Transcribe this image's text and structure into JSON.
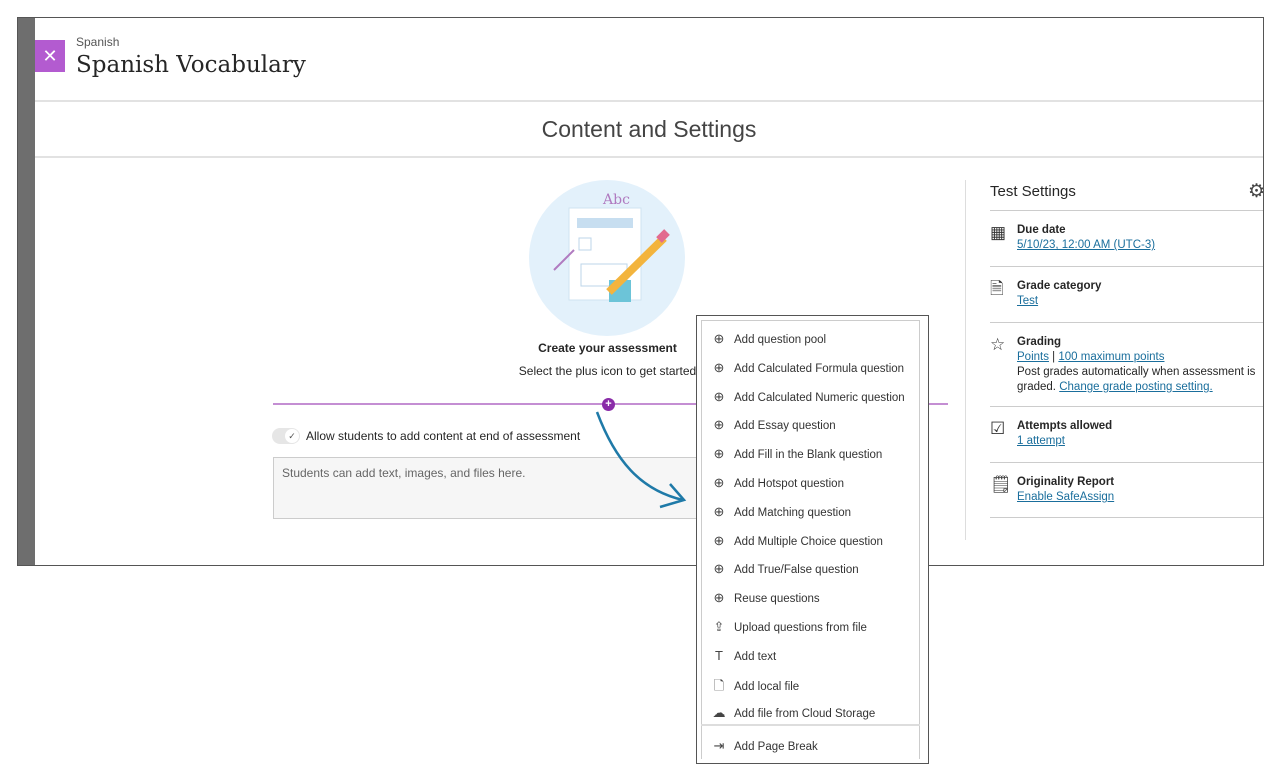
{
  "header": {
    "breadcrumb": "Spanish",
    "title": "Spanish Vocabulary",
    "close_icon": "close-icon"
  },
  "section_title": "Content and Settings",
  "empty_state": {
    "title": "Create your assessment",
    "subtitle": "Select the plus icon to get started"
  },
  "toggle": {
    "label": "Allow students to add content at end of assessment",
    "checked": true
  },
  "textarea": {
    "placeholder": "Students can add text, images, and files here."
  },
  "settings": {
    "title": "Test Settings",
    "due_date": {
      "label": "Due date",
      "value": "5/10/23, 12:00 AM (UTC-3)"
    },
    "grade_category": {
      "label": "Grade category",
      "value": "Test"
    },
    "grading": {
      "label": "Grading",
      "type": "Points",
      "sep": "|",
      "max": "100 maximum points",
      "note": "Post grades automatically when assessment is graded.",
      "change": "Change grade posting setting."
    },
    "attempts": {
      "label": "Attempts allowed",
      "value": "1 attempt"
    },
    "originality": {
      "label": "Originality Report",
      "value": "Enable SafeAssign"
    }
  },
  "menu": {
    "items": [
      {
        "label": "Add question pool",
        "icon": "plus-circle"
      },
      {
        "label": "Add Calculated Formula question",
        "icon": "plus-circle"
      },
      {
        "label": "Add Calculated Numeric question",
        "icon": "plus-circle"
      },
      {
        "label": "Add Essay question",
        "icon": "plus-circle"
      },
      {
        "label": "Add Fill in the Blank question",
        "icon": "plus-circle"
      },
      {
        "label": "Add Hotspot question",
        "icon": "plus-circle"
      },
      {
        "label": "Add Matching question",
        "icon": "plus-circle"
      },
      {
        "label": "Add Multiple Choice question",
        "icon": "plus-circle"
      },
      {
        "label": "Add True/False question",
        "icon": "plus-circle"
      },
      {
        "label": "Reuse questions",
        "icon": "plus-circle"
      },
      {
        "label": "Upload questions from file",
        "icon": "upload-file"
      },
      {
        "label": "Add text",
        "icon": "text"
      },
      {
        "label": "Add local file",
        "icon": "local-file"
      },
      {
        "label": "Add file from Cloud Storage",
        "icon": "cloud"
      },
      {
        "label": "Add Page Break",
        "icon": "page-break"
      }
    ]
  },
  "colors": {
    "accent": "#b35bd0",
    "plus": "#8a2ca8",
    "link": "#1a6e9c",
    "arrow": "#1f7aa8"
  }
}
